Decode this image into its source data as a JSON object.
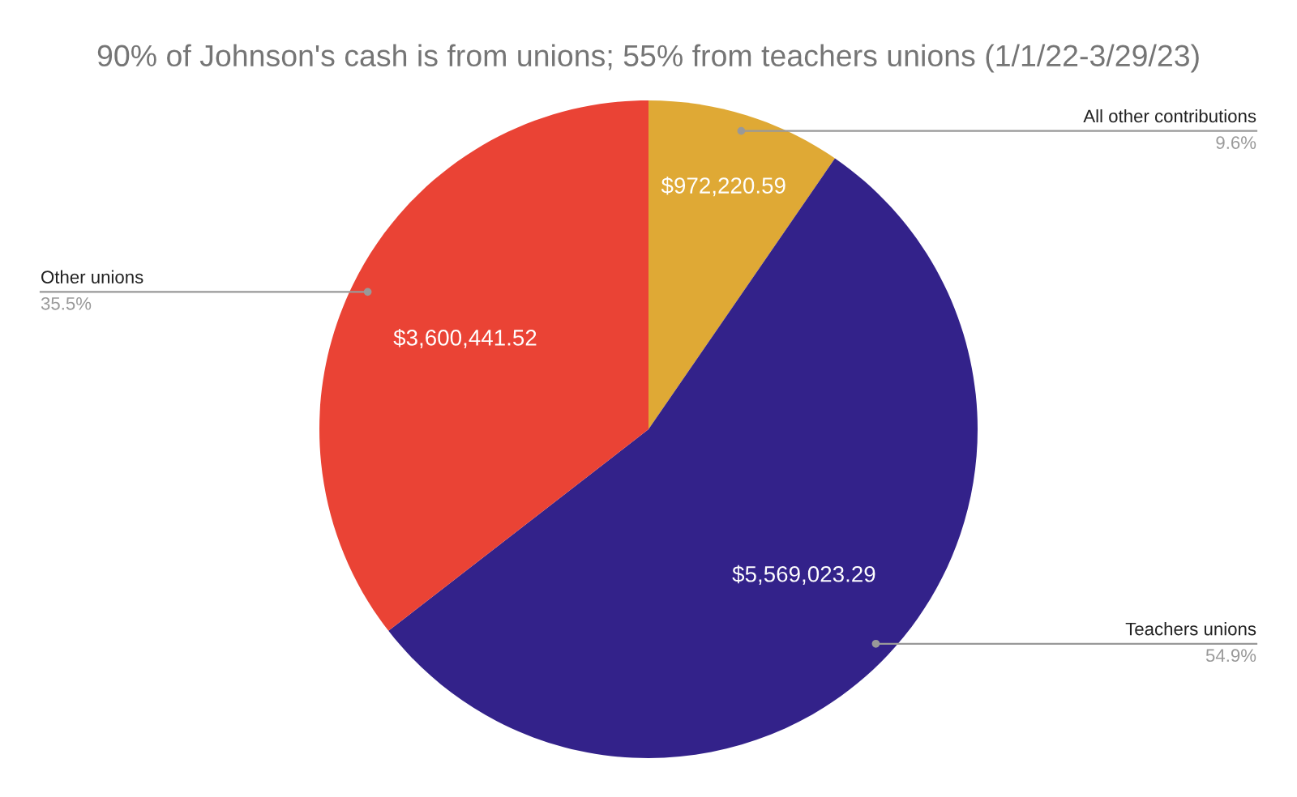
{
  "chart_data": {
    "type": "pie",
    "title": "90% of Johnson's cash is from unions; 55% from teachers unions (1/1/22-3/29/23)",
    "categories": [
      "All other contributions",
      "Teachers unions",
      "Other unions"
    ],
    "values": [
      972220.59,
      5569023.29,
      3600441.52
    ],
    "value_labels": [
      "$972,220.59",
      "$5,569,023.29",
      "$3,600,441.52"
    ],
    "colors": [
      "#dfa935",
      "#33228a",
      "#ea4335"
    ],
    "annotations": [
      {
        "text": "9.6%",
        "x": "All other contributions"
      },
      {
        "text": "54.9%",
        "x": "Teachers unions"
      },
      {
        "text": "35.5%",
        "x": "Other unions"
      }
    ],
    "legend": false
  }
}
